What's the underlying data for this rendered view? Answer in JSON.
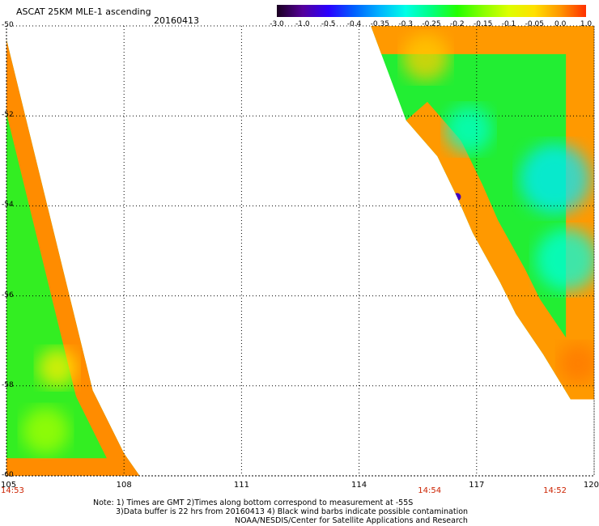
{
  "title": "ASCAT 25KM MLE-1 ascending",
  "date": "20160413",
  "colorbar": {
    "labels": [
      "-3.0",
      "-1.0",
      "-0.5",
      "-0.4",
      "-0.35",
      "-0.3",
      "-0.25",
      "-0.2",
      "-0.15",
      "-0.1",
      "-0.05",
      "0.0",
      "1.0"
    ],
    "colors": [
      "#1a0020",
      "#55009a",
      "#2a00ff",
      "#0060ff",
      "#00b4ff",
      "#00ffe6",
      "#00ff80",
      "#22ff00",
      "#88ff00",
      "#ddff00",
      "#ffe000",
      "#ff9600",
      "#ff3000"
    ]
  },
  "axes": {
    "lat_labels": [
      "-50",
      "-52",
      "-54",
      "-56",
      "-58",
      "-60"
    ],
    "lon_labels": [
      "105",
      "108",
      "111",
      "114",
      "117",
      "120"
    ],
    "lat_range": [
      -60,
      -50
    ],
    "lon_range": [
      105,
      120
    ],
    "grid": "dotted"
  },
  "pass_times": [
    {
      "label": "14:53",
      "lon": 105.0
    },
    {
      "label": "14:54",
      "lon": 115.8
    },
    {
      "label": "14:52",
      "lon": 119.0
    }
  ],
  "notes": [
    "Note: 1) Times are GMT 2)Times along bottom correspond to measurement at -55S",
    "3)Data buffer is 22 hrs from 20160413 4) Black wind barbs indicate possible contamination",
    "NOAA/NESDIS/Center for Satellite Applications and Research"
  ],
  "swaths": [
    {
      "name": "west-swath",
      "polygon": [
        [
          105.0,
          -50.3
        ],
        [
          107.2,
          -58.1
        ],
        [
          108.0,
          -59.5
        ],
        [
          108.4,
          -60.0
        ],
        [
          105.0,
          -60.0
        ]
      ],
      "edge_color": "#ff8c00",
      "fill_color": "#33ee22",
      "edge_width_deg": 1.0
    },
    {
      "name": "east-swath",
      "polygon": [
        [
          114.3,
          -50.0
        ],
        [
          120.0,
          -50.0
        ],
        [
          120.0,
          -58.3
        ],
        [
          119.4,
          -58.3
        ],
        [
          118.7,
          -57.3
        ],
        [
          118.0,
          -56.4
        ],
        [
          117.6,
          -55.7
        ],
        [
          116.9,
          -54.6
        ],
        [
          116.5,
          -53.8
        ],
        [
          116.0,
          -52.9
        ],
        [
          115.2,
          -52.1
        ]
      ],
      "edge_color": "#ff9900",
      "fill_color": "#22ee33",
      "edge_width_deg": 1.6
    }
  ],
  "highlights": [
    {
      "lon": 119.0,
      "lat": -53.4,
      "r": 0.9,
      "color": "#00e8ff"
    },
    {
      "lon": 116.8,
      "lat": -52.3,
      "r": 0.6,
      "color": "#00ffd0"
    },
    {
      "lon": 119.3,
      "lat": -55.2,
      "r": 0.8,
      "color": "#00ffe0"
    },
    {
      "lon": 115.7,
      "lat": -50.7,
      "r": 0.6,
      "color": "#ffcc00"
    },
    {
      "lon": 106.0,
      "lat": -59.0,
      "r": 0.6,
      "color": "#aaff00"
    },
    {
      "lon": 106.3,
      "lat": -57.6,
      "r": 0.5,
      "color": "#ffee00"
    },
    {
      "lon": 119.6,
      "lat": -57.5,
      "r": 0.5,
      "color": "#ff7700"
    },
    {
      "lon": 116.5,
      "lat": -53.8,
      "r": 0.1,
      "color": "#4000c0"
    }
  ]
}
